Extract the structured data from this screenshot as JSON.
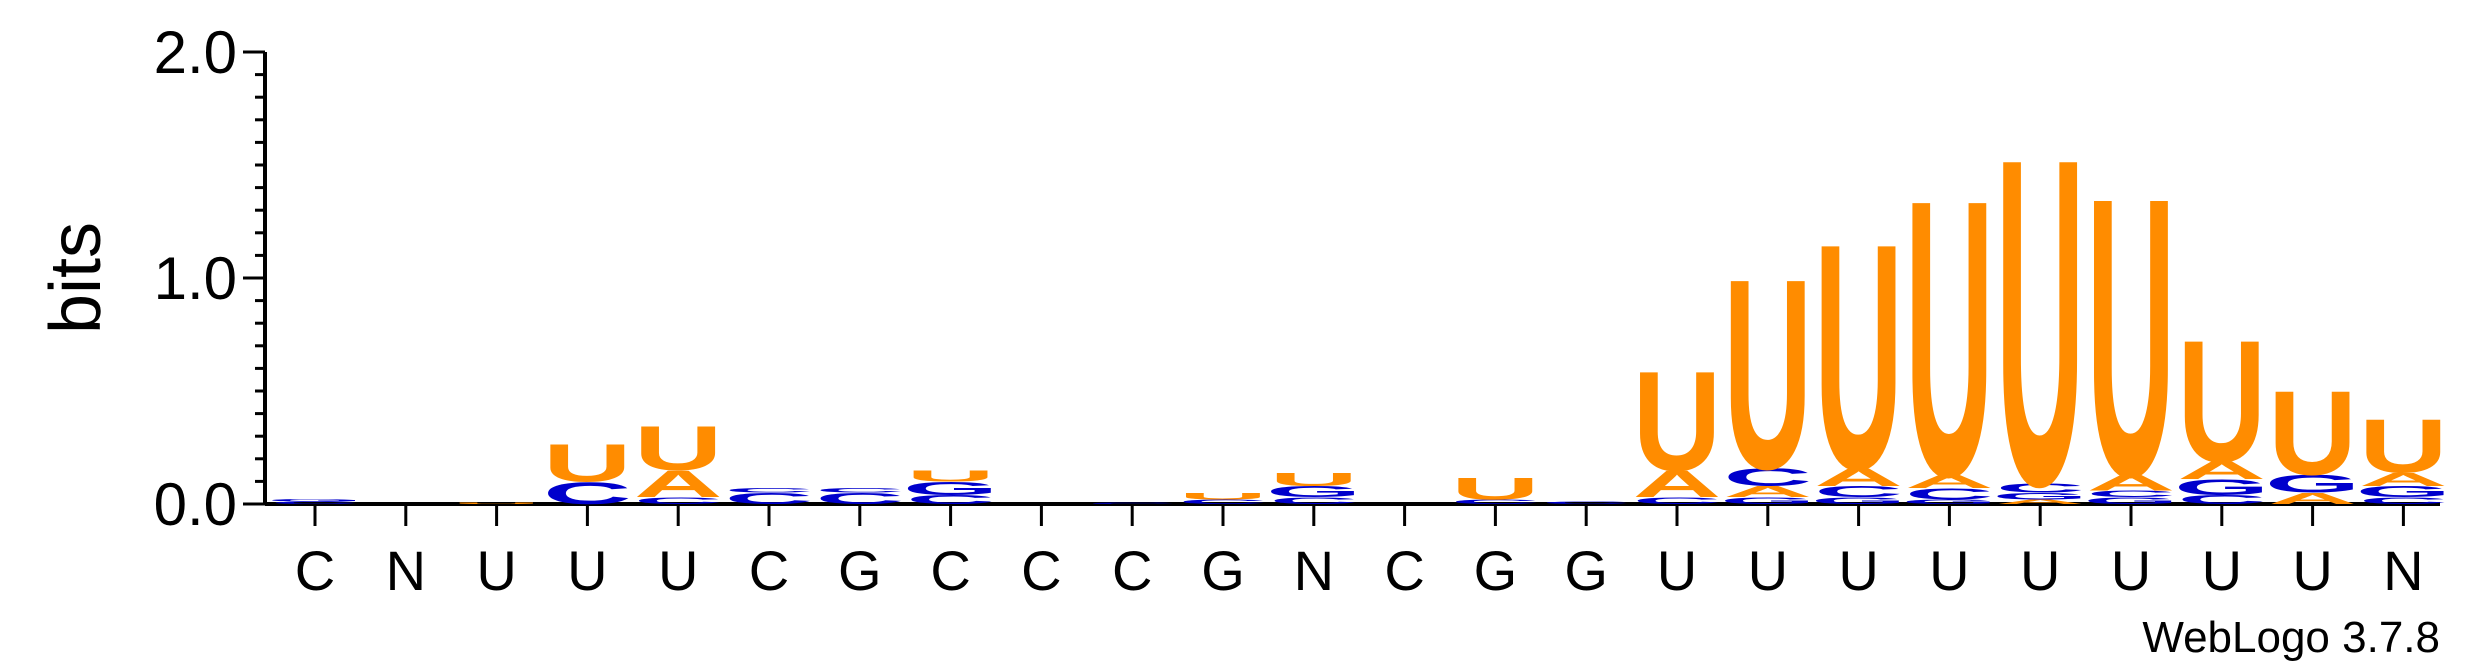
{
  "chart_data": {
    "type": "sequence-logo",
    "ylabel": "bits",
    "ylim": [
      0,
      2.0
    ],
    "yticks": [
      "0.0",
      "1.0",
      "2.0"
    ],
    "credit": "WebLogo 3.7.8",
    "colors": {
      "U": "#FF8C00",
      "A": "#FF8C00",
      "C": "#0000CC",
      "G": "#0000CC",
      "N": "#0000CC"
    },
    "positions": [
      {
        "label": "C",
        "stack": [
          {
            "letter": "C",
            "bits": 0.01
          },
          {
            "letter": "G",
            "bits": 0.01
          }
        ]
      },
      {
        "label": "N",
        "stack": []
      },
      {
        "label": "U",
        "stack": [
          {
            "letter": "U",
            "bits": 0.005
          }
        ]
      },
      {
        "label": "U",
        "stack": [
          {
            "letter": "C",
            "bits": 0.1
          },
          {
            "letter": "U",
            "bits": 0.17
          }
        ]
      },
      {
        "label": "U",
        "stack": [
          {
            "letter": "C",
            "bits": 0.03
          },
          {
            "letter": "A",
            "bits": 0.12
          },
          {
            "letter": "U",
            "bits": 0.2
          }
        ]
      },
      {
        "label": "C",
        "stack": [
          {
            "letter": "C",
            "bits": 0.05
          },
          {
            "letter": "C",
            "bits": 0.02
          }
        ]
      },
      {
        "label": "G",
        "stack": [
          {
            "letter": "C",
            "bits": 0.05
          },
          {
            "letter": "C",
            "bits": 0.02
          }
        ]
      },
      {
        "label": "C",
        "stack": [
          {
            "letter": "C",
            "bits": 0.04
          },
          {
            "letter": "G",
            "bits": 0.06
          },
          {
            "letter": "U",
            "bits": 0.05
          }
        ]
      },
      {
        "label": "C",
        "stack": []
      },
      {
        "label": "C",
        "stack": [
          {
            "letter": "C",
            "bits": 0.005
          }
        ]
      },
      {
        "label": "G",
        "stack": [
          {
            "letter": "C",
            "bits": 0.02
          },
          {
            "letter": "U",
            "bits": 0.03
          }
        ]
      },
      {
        "label": "N",
        "stack": [
          {
            "letter": "C",
            "bits": 0.03
          },
          {
            "letter": "G",
            "bits": 0.05
          },
          {
            "letter": "U",
            "bits": 0.06
          }
        ]
      },
      {
        "label": "C",
        "stack": []
      },
      {
        "label": "G",
        "stack": [
          {
            "letter": "C",
            "bits": 0.02
          },
          {
            "letter": "U",
            "bits": 0.1
          }
        ]
      },
      {
        "label": "G",
        "stack": [
          {
            "letter": "C",
            "bits": 0.01
          }
        ]
      },
      {
        "label": "U",
        "stack": [
          {
            "letter": "C",
            "bits": 0.03
          },
          {
            "letter": "A",
            "bits": 0.12
          },
          {
            "letter": "U",
            "bits": 0.45
          }
        ]
      },
      {
        "label": "U",
        "stack": [
          {
            "letter": "G",
            "bits": 0.03
          },
          {
            "letter": "A",
            "bits": 0.05
          },
          {
            "letter": "C",
            "bits": 0.08
          },
          {
            "letter": "U",
            "bits": 0.86
          }
        ]
      },
      {
        "label": "U",
        "stack": [
          {
            "letter": "G",
            "bits": 0.03
          },
          {
            "letter": "C",
            "bits": 0.05
          },
          {
            "letter": "A",
            "bits": 0.08
          },
          {
            "letter": "U",
            "bits": 1.02
          }
        ]
      },
      {
        "label": "U",
        "stack": [
          {
            "letter": "G",
            "bits": 0.02
          },
          {
            "letter": "C",
            "bits": 0.05
          },
          {
            "letter": "A",
            "bits": 0.06
          },
          {
            "letter": "U",
            "bits": 1.25
          }
        ]
      },
      {
        "label": "U",
        "stack": [
          {
            "letter": "A",
            "bits": 0.02
          },
          {
            "letter": "G",
            "bits": 0.03
          },
          {
            "letter": "C",
            "bits": 0.04
          },
          {
            "letter": "U",
            "bits": 1.48
          }
        ]
      },
      {
        "label": "U",
        "stack": [
          {
            "letter": "G",
            "bits": 0.03
          },
          {
            "letter": "C",
            "bits": 0.03
          },
          {
            "letter": "A",
            "bits": 0.07
          },
          {
            "letter": "U",
            "bits": 1.26
          }
        ]
      },
      {
        "label": "U",
        "stack": [
          {
            "letter": "C",
            "bits": 0.04
          },
          {
            "letter": "G",
            "bits": 0.07
          },
          {
            "letter": "A",
            "bits": 0.08
          },
          {
            "letter": "U",
            "bits": 0.55
          }
        ]
      },
      {
        "label": "U",
        "stack": [
          {
            "letter": "A",
            "bits": 0.05
          },
          {
            "letter": "G",
            "bits": 0.08
          },
          {
            "letter": "U",
            "bits": 0.38
          }
        ]
      },
      {
        "label": "N",
        "stack": [
          {
            "letter": "C",
            "bits": 0.03
          },
          {
            "letter": "G",
            "bits": 0.05
          },
          {
            "letter": "A",
            "bits": 0.06
          },
          {
            "letter": "U",
            "bits": 0.24
          }
        ]
      }
    ]
  }
}
